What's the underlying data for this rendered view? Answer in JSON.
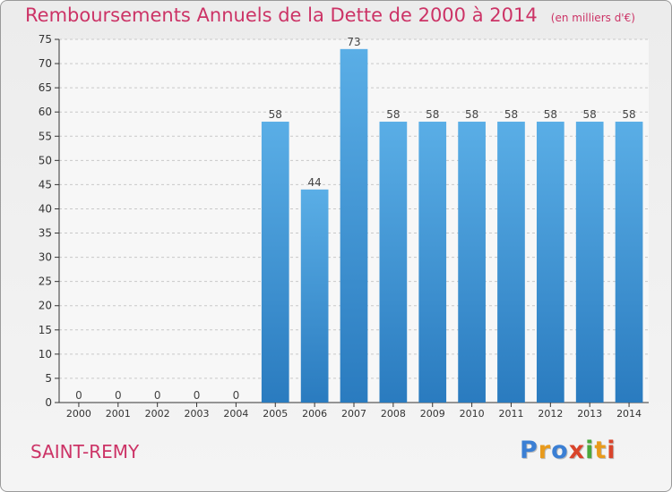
{
  "header": {
    "title": "Remboursements Annuels de la Dette de 2000 à 2014",
    "subtitle": "(en milliers d'€)"
  },
  "footer": {
    "commune": "SAINT-REMY",
    "logo_text": "Proxiti",
    "logo_colors": [
      "#3b7fd4",
      "#e89a1c",
      "#3b7fd4",
      "#d9442b",
      "#4aa83c",
      "#e89a1c",
      "#d9442b"
    ]
  },
  "colors": {
    "bar_light": "#5aaee6",
    "bar_dark": "#2a7bbf",
    "title": "#cc3366",
    "grid": "#c8c8c8",
    "axis": "#333333"
  },
  "chart_data": {
    "type": "bar",
    "categories": [
      "2000",
      "2001",
      "2002",
      "2003",
      "2004",
      "2005",
      "2006",
      "2007",
      "2008",
      "2009",
      "2010",
      "2011",
      "2012",
      "2013",
      "2014"
    ],
    "values": [
      0,
      0,
      0,
      0,
      0,
      58,
      44,
      73,
      58,
      58,
      58,
      58,
      58,
      58,
      58
    ],
    "data_labels": [
      "0",
      "0",
      "0",
      "0",
      "0",
      "58",
      "44",
      "73",
      "58",
      "58",
      "58",
      "58",
      "58",
      "58",
      "58"
    ],
    "y_ticks": [
      0,
      5,
      10,
      15,
      20,
      25,
      30,
      35,
      40,
      45,
      50,
      55,
      60,
      65,
      70,
      75
    ],
    "ylim": [
      0,
      75
    ],
    "grid": true
  }
}
